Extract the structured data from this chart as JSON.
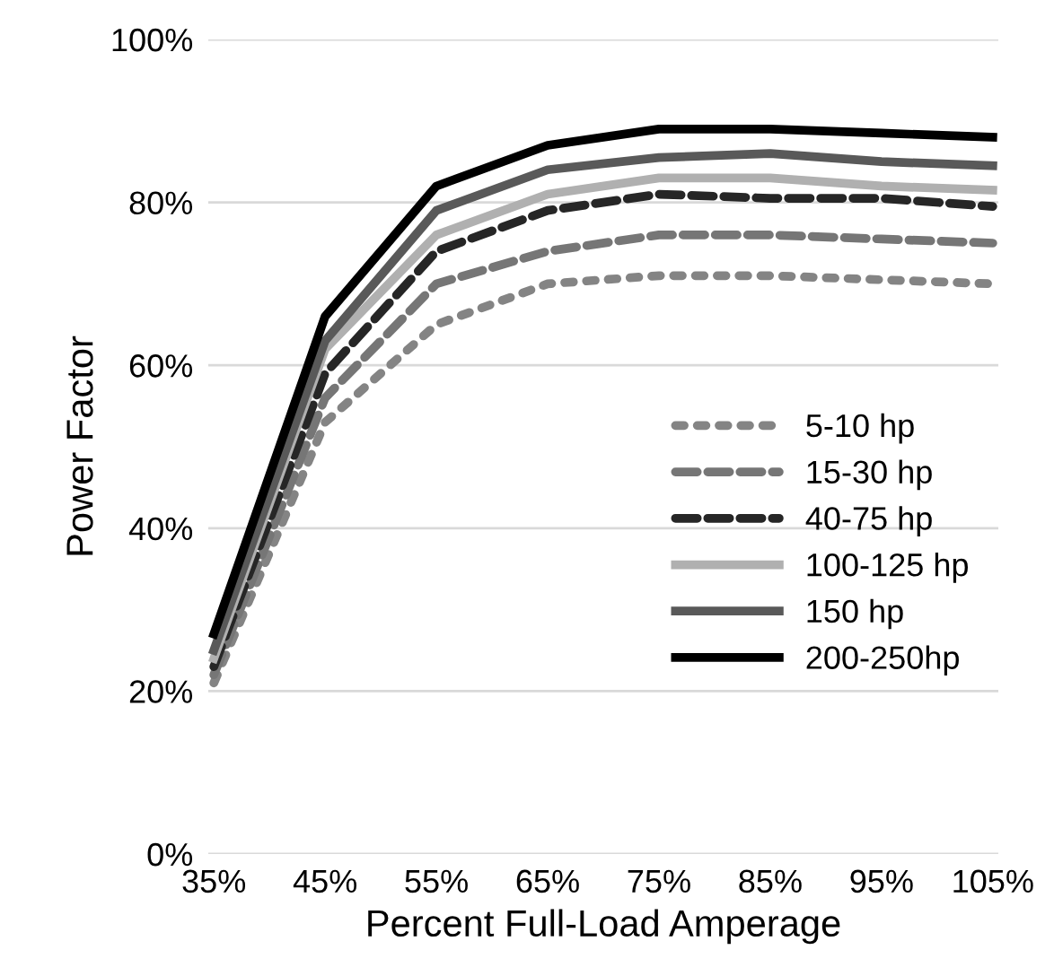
{
  "chart_data": {
    "type": "line",
    "xlabel": "Percent Full-Load Amperage",
    "ylabel": "Power Factor",
    "categories": [
      "35%",
      "45%",
      "55%",
      "65%",
      "75%",
      "85%",
      "95%",
      "105%"
    ],
    "series": [
      {
        "name": "5-10 hp",
        "color": "#848484",
        "line_style": "dotted",
        "values": [
          21,
          53,
          65,
          70,
          71,
          71,
          70.5,
          70
        ]
      },
      {
        "name": "15-30 hp",
        "color": "#767676",
        "line_style": "dashed",
        "values": [
          22,
          56,
          70,
          74,
          76,
          76,
          75.5,
          75
        ]
      },
      {
        "name": "40-75 hp",
        "color": "#262626",
        "line_style": "dashed",
        "values": [
          23,
          59,
          74,
          79,
          81,
          80.5,
          80.5,
          79.5
        ]
      },
      {
        "name": "100-125 hp",
        "color": "#b0b0b0",
        "line_style": "solid",
        "values": [
          24,
          62,
          76,
          81,
          83,
          83,
          82,
          81.5
        ]
      },
      {
        "name": "150 hp",
        "color": "#595959",
        "line_style": "solid",
        "values": [
          25,
          63,
          79,
          84,
          85.5,
          86,
          85,
          84.5
        ]
      },
      {
        "name": "200-250hp",
        "color": "#000000",
        "line_style": "solid",
        "values": [
          27,
          66,
          82,
          87,
          89,
          89,
          88.5,
          88
        ]
      }
    ],
    "ylim": [
      0,
      100
    ],
    "yticks": [
      {
        "value": 0,
        "label": "0%"
      },
      {
        "value": 20,
        "label": "20%"
      },
      {
        "value": 40,
        "label": "40%"
      },
      {
        "value": 60,
        "label": "60%"
      },
      {
        "value": 80,
        "label": "80%"
      },
      {
        "value": 100,
        "label": "100%"
      }
    ],
    "grid": "y",
    "legend": "right",
    "marker": "none"
  }
}
